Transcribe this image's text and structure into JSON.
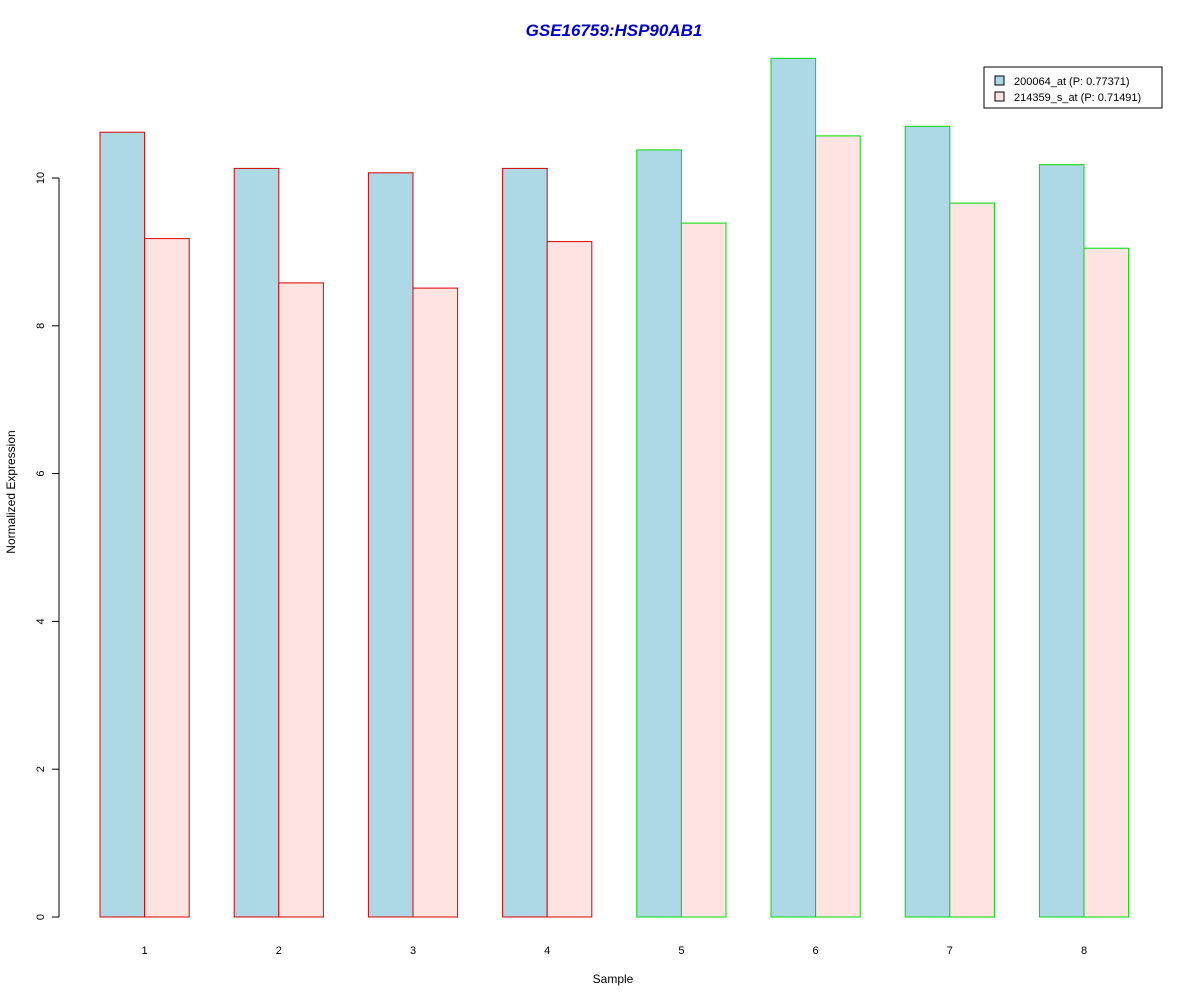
{
  "chart_data": {
    "type": "bar",
    "title": "GSE16759:HSP90AB1",
    "xlabel": "Sample",
    "ylabel": "Normalized Expression",
    "categories": [
      "1",
      "2",
      "3",
      "4",
      "5",
      "6",
      "7",
      "8"
    ],
    "ylim": [
      0,
      11.9
    ],
    "yticks": [
      "0",
      "2",
      "4",
      "6",
      "8",
      "10"
    ],
    "series": [
      {
        "name": "200064_at (P: 0.77371)",
        "values": [
          10.62,
          10.13,
          10.07,
          10.13,
          10.38,
          11.62,
          10.7,
          10.18
        ]
      },
      {
        "name": "214359_s_at (P: 0.71491)",
        "values": [
          9.18,
          8.58,
          8.51,
          9.14,
          9.39,
          10.57,
          9.66,
          9.05
        ]
      }
    ],
    "group_outline_colors": [
      "#dd0000",
      "#dd0000",
      "#dd0000",
      "#dd0000",
      "#00dd00",
      "#00dd00",
      "#00dd00",
      "#00dd00"
    ],
    "colors": {
      "series_1_fill": "#add8e6",
      "series_2_fill": "#ffe4e1",
      "title": "#0000cc"
    },
    "legend_position": "top-right",
    "grid": false
  }
}
